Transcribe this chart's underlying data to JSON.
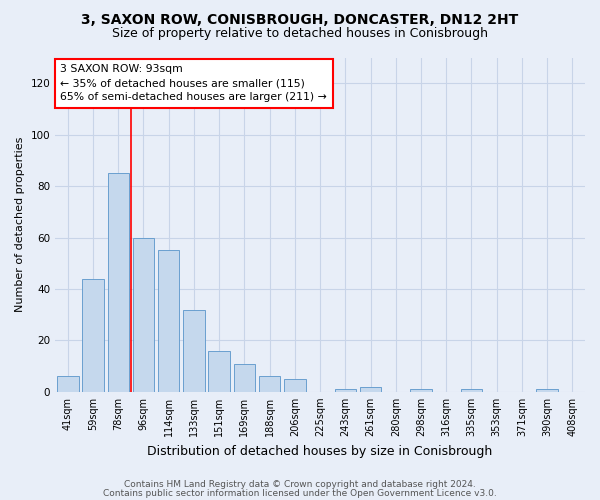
{
  "title_line1": "3, SAXON ROW, CONISBROUGH, DONCASTER, DN12 2HT",
  "title_line2": "Size of property relative to detached houses in Conisbrough",
  "xlabel": "Distribution of detached houses by size in Conisbrough",
  "ylabel": "Number of detached properties",
  "bar_color": "#c5d8ed",
  "bar_edge_color": "#6a9fcf",
  "categories": [
    "41sqm",
    "59sqm",
    "78sqm",
    "96sqm",
    "114sqm",
    "133sqm",
    "151sqm",
    "169sqm",
    "188sqm",
    "206sqm",
    "225sqm",
    "243sqm",
    "261sqm",
    "280sqm",
    "298sqm",
    "316sqm",
    "335sqm",
    "353sqm",
    "371sqm",
    "390sqm",
    "408sqm"
  ],
  "values": [
    6,
    44,
    85,
    60,
    55,
    32,
    16,
    11,
    6,
    5,
    0,
    1,
    2,
    0,
    1,
    0,
    1,
    0,
    0,
    1,
    0
  ],
  "ylim": [
    0,
    130
  ],
  "yticks": [
    0,
    20,
    40,
    60,
    80,
    100,
    120
  ],
  "vline_x": 2.5,
  "annotation_line1": "3 SAXON ROW: 93sqm",
  "annotation_line2": "← 35% of detached houses are smaller (115)",
  "annotation_line3": "65% of semi-detached houses are larger (211) →",
  "annotation_box_color": "white",
  "annotation_box_edge": "red",
  "footer_line1": "Contains HM Land Registry data © Crown copyright and database right 2024.",
  "footer_line2": "Contains public sector information licensed under the Open Government Licence v3.0.",
  "grid_color": "#c8d4e8",
  "bg_color": "#e8eef8",
  "title_fontsize": 10,
  "subtitle_fontsize": 9,
  "ylabel_fontsize": 8,
  "xlabel_fontsize": 9,
  "tick_fontsize": 7,
  "footer_fontsize": 6.5
}
